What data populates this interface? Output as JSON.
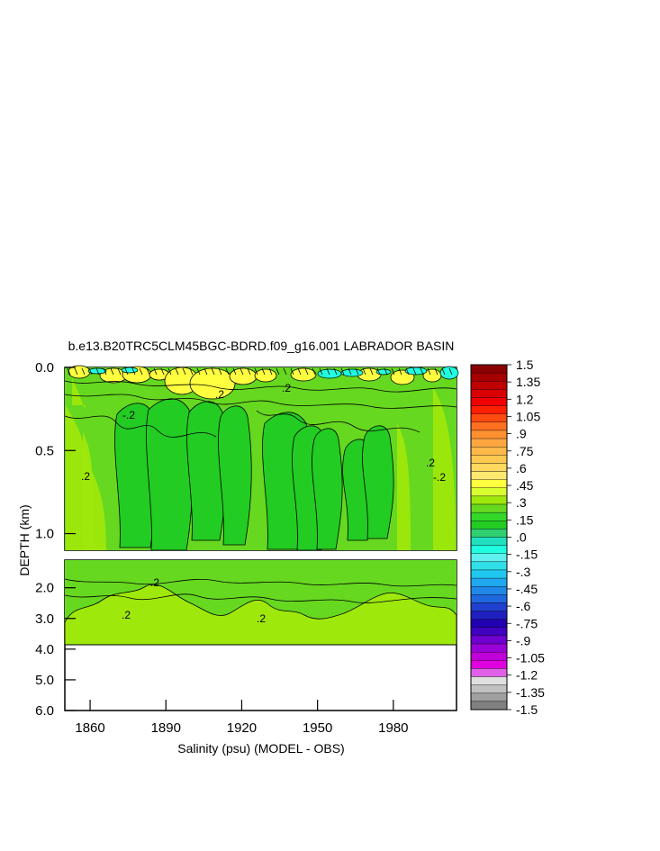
{
  "chart_data": {
    "type": "heatmap",
    "title": "b.e13.B20TRC5CLM45BGC-BDRD.f09_g16.001 LABRADOR BASIN",
    "xlabel": "Salinity (psu) (MODEL - OBS)",
    "ylabel": "DEPTH (km)",
    "x_ticks": [
      "1860",
      "1890",
      "1920",
      "1950",
      "1980"
    ],
    "x_tick_values": [
      1860,
      1890,
      1920,
      1950,
      1980
    ],
    "xlim": [
      1850,
      2005
    ],
    "upper_panel": {
      "ylim": [
        0.0,
        1.1
      ],
      "y_ticks": [
        "0.0",
        "0.5",
        "1.0"
      ],
      "y_tick_values": [
        0.0,
        0.5,
        1.0
      ]
    },
    "lower_panel": {
      "ylim": [
        1.1,
        6.0
      ],
      "y_ticks": [
        "2.0",
        "3.0",
        "4.0",
        "5.0",
        "6.0"
      ],
      "y_tick_values": [
        2.0,
        3.0,
        4.0,
        5.0,
        6.0
      ],
      "data_bottom_depth": 3.8
    },
    "contour_labels": [
      ".2",
      "-.2",
      ".2",
      ".2",
      ".2",
      ".2",
      ".2",
      ".2",
      "-.2"
    ],
    "colorbar": {
      "min": -1.5,
      "max": 1.5,
      "labels": [
        "1.5",
        "1.35",
        "1.2",
        "1.05",
        ".9",
        ".75",
        ".6",
        ".45",
        ".3",
        ".15",
        ".0",
        "-.15",
        "-.3",
        "-.45",
        "-.6",
        "-.75",
        "-.9",
        "-1.05",
        "-1.2",
        "-1.35",
        "-1.5"
      ],
      "colors": [
        "#8b0000",
        "#a40000",
        "#be0000",
        "#d80000",
        "#f00000",
        "#ff2000",
        "#ff4a10",
        "#ff7020",
        "#ff9030",
        "#ffa640",
        "#ffb84a",
        "#ffc850",
        "#ffd860",
        "#ffe870",
        "#ffff40",
        "#d8ff30",
        "#9ee80c",
        "#66d820",
        "#33d82a",
        "#22cc22",
        "#30d070",
        "#20e0c0",
        "#20ffe0",
        "#60f0f0",
        "#30e0e8",
        "#20c8f0",
        "#20a8f0",
        "#2088e8",
        "#2068e0",
        "#2040d0",
        "#2020c0",
        "#2000b0",
        "#4000c0",
        "#7000d0",
        "#9a00d8",
        "#c000d8",
        "#e000e0",
        "#e060e8",
        "#e0e0e0",
        "#c0c0c0",
        "#a0a0a0",
        "#808080"
      ]
    },
    "regions": {
      "background_value": 0.12,
      "background_color": "#66d820",
      "deep_value": 0.2,
      "deep_color": "#9ee80c",
      "surface_positive_color": "#ffff40",
      "surface_negative_color": "#20ffe0",
      "near_zero_color": "#22cc22"
    }
  }
}
